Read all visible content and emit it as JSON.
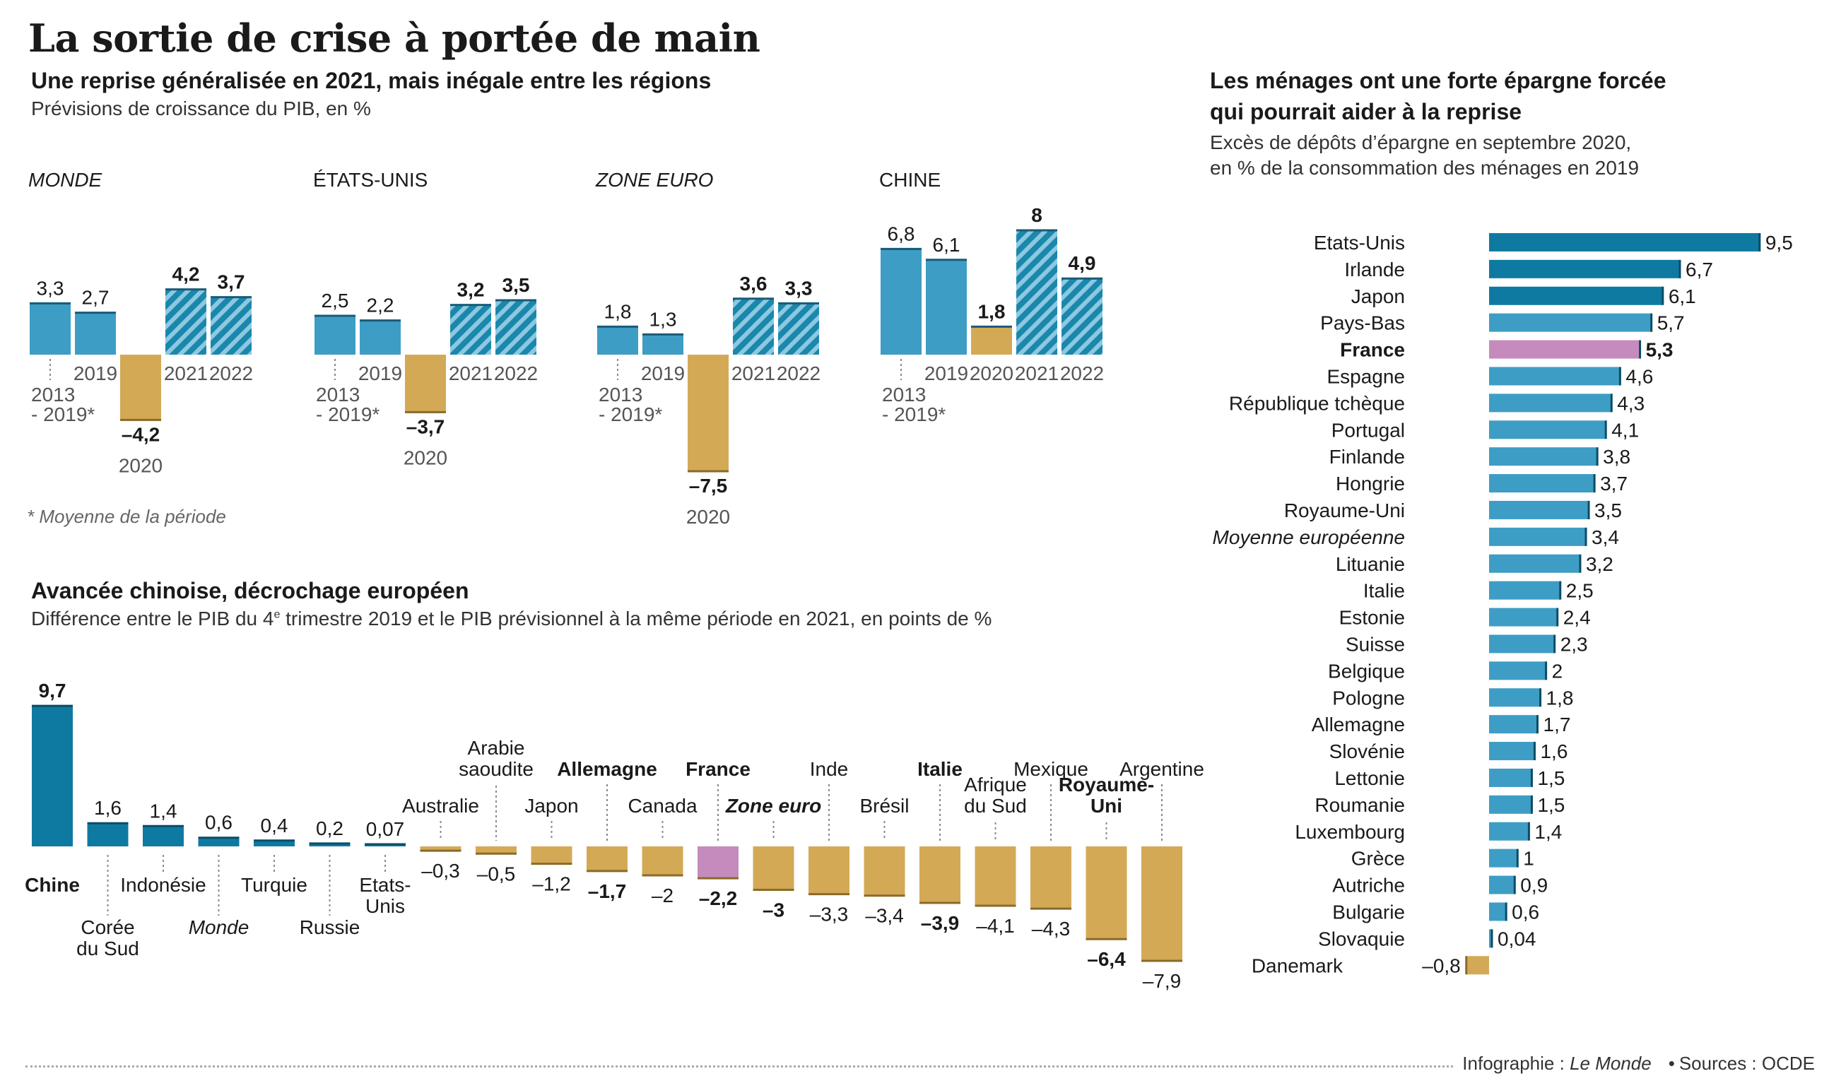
{
  "title": "La sortie de crise à portée de main",
  "footer": {
    "credit_prefix": "Infographie : ",
    "credit_name": "Le Monde",
    "sources": "Sources : OCDE"
  },
  "colors": {
    "blue": "#3e9dc4",
    "dark_blue": "#0f7aa1",
    "gold": "#d4a956",
    "pink": "#c58bbd",
    "text": "#1a1a1a",
    "grey_text": "#666666"
  },
  "chart_data": [
    {
      "type": "bar",
      "title": "Une reprise généralisée en 2021, mais inégale entre les régions",
      "subtitle": "Prévisions de croissance du PIB, en %",
      "footnote": "* Moyenne de la période",
      "categories": [
        "2013 - 2019*",
        "2019",
        "2020",
        "2021",
        "2022"
      ],
      "panels": [
        {
          "name": "MONDE",
          "italic": true,
          "values": [
            3.3,
            2.7,
            -4.2,
            4.2,
            3.7
          ],
          "labels": [
            "3,3",
            "2,7",
            "– 4,2",
            "4,2",
            "3,7"
          ]
        },
        {
          "name": "ÉTATS-UNIS",
          "italic": false,
          "values": [
            2.5,
            2.2,
            -3.7,
            3.2,
            3.5
          ],
          "labels": [
            "2,5",
            "2,2",
            "– 3,7",
            "3,2",
            "3,5"
          ]
        },
        {
          "name": "ZONE EURO",
          "italic": true,
          "values": [
            1.8,
            1.3,
            -7.5,
            3.6,
            3.3
          ],
          "labels": [
            "1,8",
            "1,3",
            "–7,5",
            "3,6",
            "3,3"
          ]
        },
        {
          "name": "CHINE",
          "italic": false,
          "values": [
            6.8,
            6.1,
            1.8,
            8,
            4.9
          ],
          "labels": [
            "6,8",
            "6,1",
            "1,8",
            "8",
            "4,9"
          ]
        }
      ],
      "ylim": [
        -7.5,
        8
      ]
    },
    {
      "type": "bar",
      "title": "Avancée chinoise, décrochage européen",
      "subtitle_before": "Différence entre le PIB du 4",
      "subtitle_sup": "e",
      "subtitle_after": " trimestre 2019 et le PIB prévisionnel à la même période en 2021, en points de %",
      "categories": [
        "Chine",
        "Corée du Sud",
        "Indonésie",
        "Monde",
        "Turquie",
        "Russie",
        "Etats-Unis",
        "Australie",
        "Arabie saoudite",
        "Japon",
        "Allemagne",
        "Canada",
        "France",
        "Zone euro",
        "Inde",
        "Brésil",
        "Italie",
        "Afrique du Sud",
        "Mexique",
        "Royaume-Uni",
        "Argentine"
      ],
      "values": [
        9.7,
        1.6,
        1.4,
        0.6,
        0.4,
        0.2,
        0.07,
        -0.3,
        -0.5,
        -1.2,
        -1.7,
        -2,
        -2.2,
        -3,
        -3.3,
        -3.4,
        -3.9,
        -4.1,
        -4.3,
        -6.4,
        -7.9
      ],
      "value_labels": [
        "9,7",
        "1,6",
        "1,4",
        "0,6",
        "0,4",
        "0,2",
        "0,07",
        "– 0,3",
        "– 0,5",
        "– 1,2",
        "–1,7",
        "– 2",
        "– 2,2",
        "– 3",
        "– 3,3",
        "– 3,4",
        "– 3,9",
        "– 4,1",
        "– 4,3",
        "– 6,4",
        "–7,9"
      ],
      "ylim": [
        -7.9,
        9.7
      ]
    },
    {
      "type": "bar",
      "orientation": "horizontal",
      "title_lines": [
        "Les ménages ont une forte épargne forcée",
        "qui pourrait aider à la reprise"
      ],
      "subtitle_lines": [
        "Excès de dépôts d’épargne en septembre 2020,",
        "en % de la consommation des ménages en 2019"
      ],
      "categories": [
        "Etats-Unis",
        "Irlande",
        "Japon",
        "Pays-Bas",
        "France",
        "Espagne",
        "République tchèque",
        "Portugal",
        "Finlande",
        "Hongrie",
        "Royaume-Uni",
        "Moyenne européenne",
        "Lituanie",
        "Italie",
        "Estonie",
        "Suisse",
        "Belgique",
        "Pologne",
        "Allemagne",
        "Slovénie",
        "Lettonie",
        "Roumanie",
        "Luxembourg",
        "Grèce",
        "Autriche",
        "Bulgarie",
        "Slovaquie",
        "Danemark"
      ],
      "values": [
        9.5,
        6.7,
        6.1,
        5.7,
        5.3,
        4.6,
        4.3,
        4.1,
        3.8,
        3.7,
        3.5,
        3.4,
        3.2,
        2.5,
        2.4,
        2.3,
        2,
        1.8,
        1.7,
        1.6,
        1.5,
        1.5,
        1.4,
        1,
        0.9,
        0.6,
        0.04,
        -0.8
      ],
      "value_labels": [
        "9,5",
        "6,7",
        "6,1",
        "5,7",
        "5,3",
        "4,6",
        "4,3",
        "4,1",
        "3,8",
        "3,7",
        "3,5",
        "3,4",
        "3,2",
        "2,5",
        "2,4",
        "2,3",
        "2",
        "1,8",
        "1,7",
        "1,6",
        "1,5",
        "1,5",
        "1,4",
        "1",
        "0,9",
        "0,6",
        "0,04",
        "– 0,8"
      ],
      "xlim": [
        -0.8,
        9.5
      ]
    }
  ]
}
